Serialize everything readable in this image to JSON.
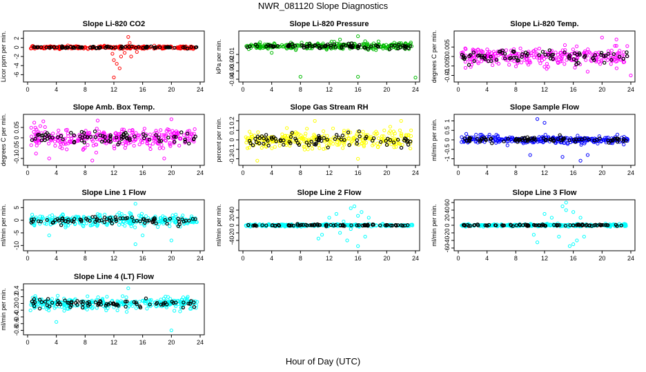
{
  "figure": {
    "title": "NWR_081120  Slope Diagnostics",
    "xlabel": "Hour of Day (UTC)"
  },
  "chart_data": [
    {
      "type": "scatter",
      "title": "Slope Li-820 CO2",
      "ylabel": "Licor ppm per min.",
      "xlim": [
        0,
        24
      ],
      "ylim": [
        -7,
        3
      ],
      "yticks": [
        -6,
        -4,
        -2,
        0,
        2
      ],
      "xticks": [
        0,
        4,
        8,
        12,
        16,
        20,
        24
      ],
      "points_color": "#ff0000",
      "spread": 0.3,
      "outliers": [
        [
          12,
          -2.8
        ],
        [
          12.4,
          -3.6
        ],
        [
          12.8,
          -4.6
        ],
        [
          13,
          -2
        ],
        [
          13.5,
          -1.2
        ],
        [
          14,
          2.3
        ],
        [
          14.4,
          -2.0
        ],
        [
          12,
          -6.6
        ],
        [
          15.2,
          -1.0
        ],
        [
          14.2,
          1.0
        ],
        [
          11.8,
          -1.4
        ]
      ]
    },
    {
      "type": "scatter",
      "title": "Slope Li-820 Pressure",
      "ylabel": "kPa per min.",
      "xlim": [
        0,
        24
      ],
      "ylim": [
        -0.04,
        0.015
      ],
      "yticks": [
        -0.04,
        -0.03,
        -0.02,
        -0.01
      ],
      "xticks": [
        0,
        4,
        8,
        12,
        16,
        20,
        24
      ],
      "points_color": "#00bb00",
      "spread": 0.004,
      "outliers": [
        [
          8,
          -0.037
        ],
        [
          16,
          -0.037
        ],
        [
          24,
          -0.038
        ],
        [
          16,
          0.012
        ],
        [
          4,
          -0.008
        ],
        [
          13.5,
          0.008
        ],
        [
          17,
          0.006
        ]
      ]
    },
    {
      "type": "scatter",
      "title": "Slope Li-820 Temp.",
      "ylabel": "degrees C per min.",
      "xlim": [
        0,
        24
      ],
      "ylim": [
        -0.012,
        0.012
      ],
      "yticks": [
        -0.01,
        -0.005,
        0,
        0.005
      ],
      "xticks": [
        0,
        4,
        8,
        12,
        16,
        20,
        24
      ],
      "points_color": "#ff00ff",
      "spread": 0.0045,
      "outliers": [
        [
          20,
          0.01
        ],
        [
          22,
          0.009
        ],
        [
          24,
          -0.01
        ],
        [
          18,
          -0.008
        ]
      ]
    },
    {
      "type": "scatter",
      "title": "Slope Amb. Box Temp.",
      "ylabel": "degrees C per min.",
      "xlim": [
        0,
        24
      ],
      "ylim": [
        -0.12,
        0.1
      ],
      "yticks": [
        -0.1,
        -0.05,
        0,
        0.05
      ],
      "xticks": [
        0,
        4,
        8,
        12,
        16,
        20,
        24
      ],
      "points_color": "#ff00ff",
      "spread": 0.045,
      "outliers": [
        [
          3,
          -0.1
        ],
        [
          9,
          -0.11
        ],
        [
          19,
          -0.1
        ],
        [
          20,
          0.09
        ]
      ]
    },
    {
      "type": "scatter",
      "title": "Slope Gas Stream RH",
      "ylabel": "percent per min.",
      "xlim": [
        0,
        24
      ],
      "ylim": [
        -0.24,
        0.24
      ],
      "yticks": [
        -0.2,
        -0.1,
        0,
        0.1,
        0.2
      ],
      "xticks": [
        0,
        4,
        8,
        12,
        16,
        20,
        24
      ],
      "points_color": "#ffff00",
      "spread": 0.09,
      "outliers": [
        [
          2,
          -0.22
        ],
        [
          10,
          0.2
        ],
        [
          16,
          -0.2
        ],
        [
          22,
          0.2
        ]
      ]
    },
    {
      "type": "scatter",
      "title": "Slope Sample Flow",
      "ylabel": "ml/min per min.",
      "xlim": [
        0,
        24
      ],
      "ylim": [
        -1.2,
        1.2
      ],
      "yticks": [
        -1,
        -0.5,
        0,
        0.5,
        1
      ],
      "xticks": [
        0,
        4,
        8,
        12,
        16,
        20,
        24
      ],
      "points_color": "#0000ff",
      "spread": 0.2,
      "outliers": [
        [
          11,
          1.1
        ],
        [
          12,
          0.9
        ],
        [
          14.5,
          -0.9
        ],
        [
          17,
          -1.1
        ],
        [
          18,
          -0.8
        ],
        [
          10,
          -0.8
        ]
      ]
    },
    {
      "type": "scatter",
      "title": "Slope Line 1 Flow",
      "ylabel": "ml/min per min.",
      "xlim": [
        0,
        24
      ],
      "ylim": [
        -11,
        7
      ],
      "yticks": [
        -10,
        -5,
        0,
        5
      ],
      "xticks": [
        0,
        4,
        8,
        12,
        16,
        20,
        24
      ],
      "points_color": "#00ffff",
      "spread": 2.2,
      "outliers": [
        [
          15,
          6.5
        ],
        [
          15,
          -9.5
        ],
        [
          16,
          -6
        ],
        [
          3,
          -6
        ],
        [
          20,
          -8
        ]
      ]
    },
    {
      "type": "scatter",
      "title": "Slope Line 2 Flow",
      "ylabel": "ml/min per min.",
      "xlim": [
        0,
        24
      ],
      "ylim": [
        -60,
        60
      ],
      "yticks": [
        -40,
        -20,
        0,
        20,
        40
      ],
      "xticks": [
        0,
        4,
        8,
        12,
        16,
        20,
        24
      ],
      "points_color": "#00ffff",
      "spread": 3,
      "outliers": [
        [
          10.5,
          -35
        ],
        [
          11,
          -25
        ],
        [
          12,
          20
        ],
        [
          13,
          30
        ],
        [
          13.5,
          -20
        ],
        [
          14.5,
          -40
        ],
        [
          15,
          45
        ],
        [
          15.5,
          50
        ],
        [
          16,
          -55
        ],
        [
          16.5,
          35
        ],
        [
          17,
          -30
        ],
        [
          17.5,
          20
        ],
        [
          15,
          -10
        ],
        [
          16,
          25
        ],
        [
          14,
          10
        ]
      ]
    },
    {
      "type": "scatter",
      "title": "Slope Line 3 Flow",
      "ylabel": "ml/min per min.",
      "xlim": [
        0,
        24
      ],
      "ylim": [
        -60,
        60
      ],
      "yticks": [
        -60,
        -40,
        -20,
        0,
        20,
        40,
        60
      ],
      "xticks": [
        0,
        4,
        8,
        12,
        16,
        20,
        24
      ],
      "points_color": "#00ffff",
      "spread": 3,
      "outliers": [
        [
          10.5,
          -25
        ],
        [
          11,
          -45
        ],
        [
          12,
          30
        ],
        [
          13,
          20
        ],
        [
          14,
          -30
        ],
        [
          14.5,
          50
        ],
        [
          15,
          40
        ],
        [
          15.5,
          -55
        ],
        [
          16,
          35
        ],
        [
          16.5,
          -40
        ],
        [
          17,
          20
        ],
        [
          17.5,
          -30
        ],
        [
          15,
          60
        ],
        [
          16,
          -50
        ]
      ]
    },
    {
      "type": "scatter",
      "title": "Slope Line 4 (LT) Flow",
      "ylabel": "ml/min per min.",
      "xlim": [
        0,
        24
      ],
      "ylim": [
        -0.85,
        0.5
      ],
      "yticks": [
        -0.8,
        -0.6,
        -0.4,
        -0.2,
        0,
        0.2,
        0.4
      ],
      "xticks": [
        0,
        4,
        8,
        12,
        16,
        20,
        24
      ],
      "points_color": "#00ffff",
      "spread": 0.17,
      "outliers": [
        [
          20,
          -0.8
        ],
        [
          14,
          0.45
        ],
        [
          4,
          -0.55
        ]
      ]
    }
  ]
}
